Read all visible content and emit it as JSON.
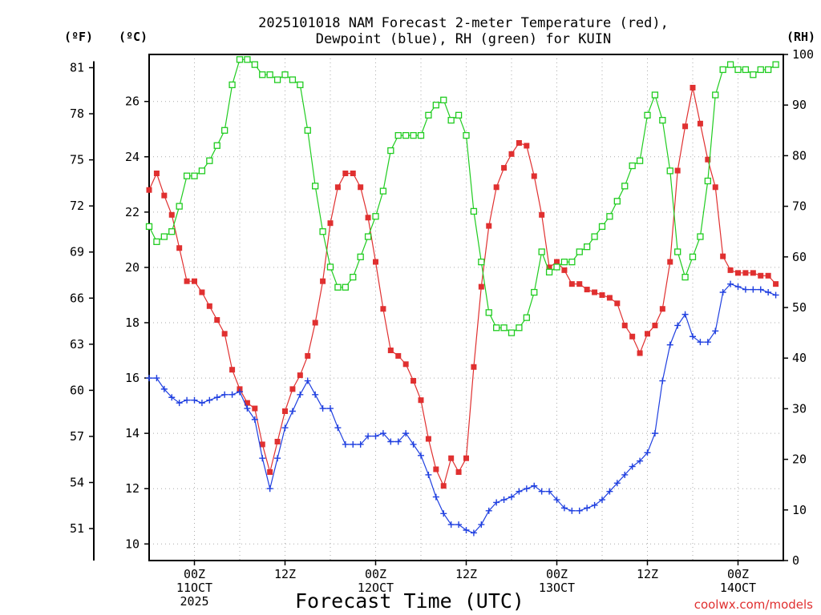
{
  "chart_data": {
    "type": "line",
    "title_lines": [
      "2025101018 NAM Forecast 2-meter Temperature (red),",
      "Dewpoint (blue), RH (green) for KUIN"
    ],
    "xlabel": "Forecast Time (UTC)",
    "credit": "coolwx.com/models",
    "x_start_hour": 18,
    "x_end_hour": 102,
    "x_ticks": [
      {
        "hour": 24,
        "lines": [
          "00Z",
          "11OCT",
          "2025"
        ]
      },
      {
        "hour": 36,
        "lines": [
          "12Z"
        ]
      },
      {
        "hour": 48,
        "lines": [
          "00Z",
          "12OCT"
        ]
      },
      {
        "hour": 60,
        "lines": [
          "12Z"
        ]
      },
      {
        "hour": 72,
        "lines": [
          "00Z",
          "13OCT"
        ]
      },
      {
        "hour": 84,
        "lines": [
          "12Z"
        ]
      },
      {
        "hour": 96,
        "lines": [
          "00Z",
          "14OCT"
        ]
      }
    ],
    "axis_left_f": {
      "unit": "(ºF)",
      "ticks": [
        51,
        54,
        57,
        60,
        63,
        66,
        69,
        72,
        75,
        78,
        81
      ]
    },
    "axis_left_c": {
      "unit": "(ºC)",
      "range": [
        9.4,
        27.7
      ],
      "ticks": [
        10,
        12,
        14,
        16,
        18,
        20,
        22,
        24,
        26
      ]
    },
    "axis_right_rh": {
      "unit": "(RH)",
      "range": [
        0,
        100
      ],
      "ticks": [
        0,
        10,
        20,
        30,
        40,
        50,
        60,
        70,
        80,
        90,
        100
      ]
    },
    "series": [
      {
        "color": "#e03030",
        "marker": "square-filled",
        "axis": "c",
        "values": [
          22.8,
          23.4,
          22.6,
          21.9,
          20.7,
          19.5,
          19.5,
          19.1,
          18.6,
          18.1,
          17.6,
          16.3,
          15.6,
          15.1,
          14.9,
          13.6,
          12.6,
          13.7,
          14.8,
          15.6,
          16.1,
          16.8,
          18.0,
          19.5,
          21.6,
          22.9,
          23.4,
          23.4,
          22.9,
          21.8,
          20.2,
          18.5,
          17.0,
          16.8,
          16.5,
          15.9,
          15.2,
          13.8,
          12.7,
          12.1,
          13.1,
          12.6,
          13.1,
          16.4,
          19.3,
          21.5,
          22.9,
          23.6,
          24.1,
          24.5,
          24.4,
          23.3,
          21.9,
          20.0,
          20.2,
          19.9,
          19.4,
          19.4,
          19.2,
          19.1,
          19.0,
          18.9,
          18.7,
          17.9,
          17.5,
          16.9,
          17.6,
          17.9,
          18.5,
          20.2,
          23.5,
          25.1,
          26.5,
          25.2,
          23.9,
          22.9,
          20.4,
          19.9,
          19.8,
          19.8,
          19.8,
          19.7,
          19.7,
          19.4
        ]
      },
      {
        "color": "#2040e0",
        "marker": "plus",
        "axis": "c",
        "values": [
          16.0,
          16.0,
          15.6,
          15.3,
          15.1,
          15.2,
          15.2,
          15.1,
          15.2,
          15.3,
          15.4,
          15.4,
          15.5,
          14.9,
          14.5,
          13.1,
          12.0,
          13.1,
          14.2,
          14.8,
          15.4,
          15.9,
          15.4,
          14.9,
          14.9,
          14.2,
          13.6,
          13.6,
          13.6,
          13.9,
          13.9,
          14.0,
          13.7,
          13.7,
          14.0,
          13.6,
          13.2,
          12.5,
          11.7,
          11.1,
          10.7,
          10.7,
          10.5,
          10.4,
          10.7,
          11.2,
          11.5,
          11.6,
          11.7,
          11.9,
          12.0,
          12.1,
          11.9,
          11.9,
          11.6,
          11.3,
          11.2,
          11.2,
          11.3,
          11.4,
          11.6,
          11.9,
          12.2,
          12.5,
          12.8,
          13.0,
          13.3,
          14.0,
          15.9,
          17.2,
          17.9,
          18.3,
          17.5,
          17.3,
          17.3,
          17.7,
          19.1,
          19.4,
          19.3,
          19.2,
          19.2,
          19.2,
          19.1,
          19.0
        ]
      },
      {
        "color": "#20cc20",
        "marker": "square-open",
        "axis": "rh",
        "values": [
          66,
          63,
          64,
          65,
          70,
          76,
          76,
          77,
          79,
          82,
          85,
          94,
          99,
          99,
          98,
          96,
          96,
          95,
          96,
          95,
          94,
          85,
          74,
          65,
          58,
          54,
          54,
          56,
          60,
          64,
          68,
          73,
          81,
          84,
          84,
          84,
          84,
          88,
          90,
          91,
          87,
          88,
          84,
          69,
          59,
          49,
          46,
          46,
          45,
          46,
          48,
          53,
          61,
          57,
          58,
          59,
          59,
          61,
          62,
          64,
          66,
          68,
          71,
          74,
          78,
          79,
          88,
          92,
          87,
          77,
          61,
          56,
          60,
          64,
          75,
          92,
          97,
          98,
          97,
          97,
          96,
          97,
          97,
          98
        ]
      }
    ]
  }
}
